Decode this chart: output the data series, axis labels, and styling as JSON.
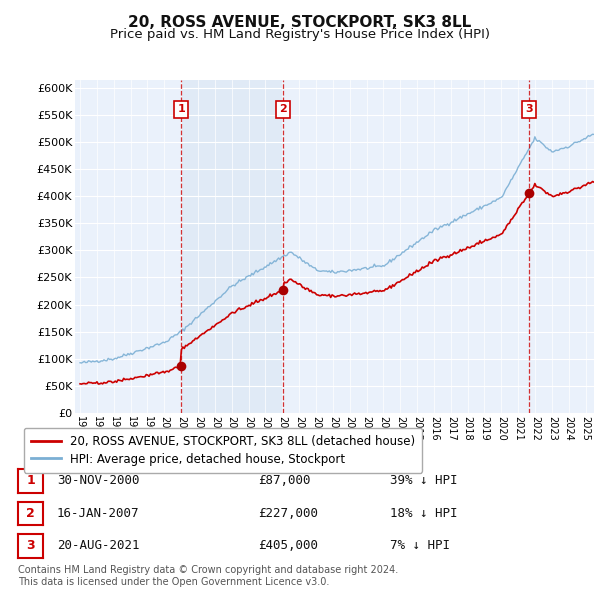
{
  "title": "20, ROSS AVENUE, STOCKPORT, SK3 8LL",
  "subtitle": "Price paid vs. HM Land Registry's House Price Index (HPI)",
  "title_fontsize": 11,
  "subtitle_fontsize": 9.5,
  "ylabel_ticks": [
    "£0",
    "£50K",
    "£100K",
    "£150K",
    "£200K",
    "£250K",
    "£300K",
    "£350K",
    "£400K",
    "£450K",
    "£500K",
    "£550K",
    "£600K"
  ],
  "ytick_values": [
    0,
    50000,
    100000,
    150000,
    200000,
    250000,
    300000,
    350000,
    400000,
    450000,
    500000,
    550000,
    600000
  ],
  "ylim": [
    0,
    615000
  ],
  "xlim_start": 1994.7,
  "xlim_end": 2025.5,
  "xtick_labels": [
    "1995",
    "1996",
    "1997",
    "1998",
    "1999",
    "2000",
    "2001",
    "2002",
    "2003",
    "2004",
    "2005",
    "2006",
    "2007",
    "2008",
    "2009",
    "2010",
    "2011",
    "2012",
    "2013",
    "2014",
    "2015",
    "2016",
    "2017",
    "2018",
    "2019",
    "2020",
    "2021",
    "2022",
    "2023",
    "2024",
    "2025"
  ],
  "sale_color": "#cc0000",
  "hpi_color": "#7bafd4",
  "sale_label": "20, ROSS AVENUE, STOCKPORT, SK3 8LL (detached house)",
  "hpi_label": "HPI: Average price, detached house, Stockport",
  "shade_color": "#dce8f5",
  "transactions": [
    {
      "num": 1,
      "date": 2001.0,
      "price": 87000,
      "label": "1"
    },
    {
      "num": 2,
      "date": 2007.05,
      "price": 227000,
      "label": "2"
    },
    {
      "num": 3,
      "date": 2021.64,
      "price": 405000,
      "label": "3"
    }
  ],
  "table_rows": [
    {
      "num": "1",
      "date": "30-NOV-2000",
      "price": "£87,000",
      "note": "39% ↓ HPI"
    },
    {
      "num": "2",
      "date": "16-JAN-2007",
      "price": "£227,000",
      "note": "18% ↓ HPI"
    },
    {
      "num": "3",
      "date": "20-AUG-2021",
      "price": "£405,000",
      "note": "7% ↓ HPI"
    }
  ],
  "footnote": "Contains HM Land Registry data © Crown copyright and database right 2024.\nThis data is licensed under the Open Government Licence v3.0.",
  "bg_color": "#ffffff",
  "plot_bg_color": "#eaf1fb",
  "grid_color": "#ffffff",
  "marker_color": "#aa0000",
  "marker_size": 7,
  "dashed_line_color": "#cc0000"
}
